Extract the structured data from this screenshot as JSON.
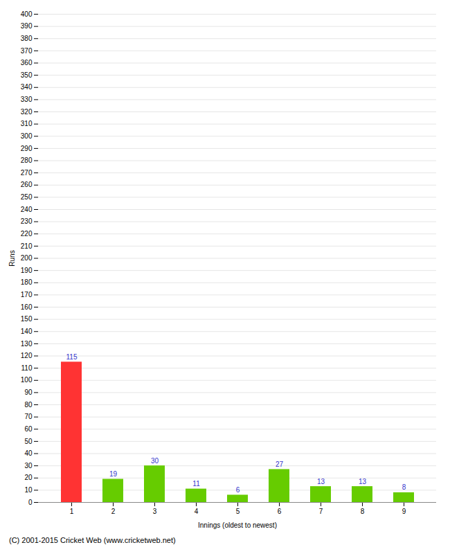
{
  "chart_data": {
    "type": "bar",
    "categories": [
      "1",
      "2",
      "3",
      "4",
      "5",
      "6",
      "7",
      "8",
      "9"
    ],
    "values": [
      115,
      19,
      30,
      11,
      6,
      27,
      13,
      13,
      8
    ],
    "colors": [
      "#ff3333",
      "#66cc00",
      "#66cc00",
      "#66cc00",
      "#66cc00",
      "#66cc00",
      "#66cc00",
      "#66cc00",
      "#66cc00"
    ],
    "xlabel": "Innings (oldest to newest)",
    "ylabel": "Runs",
    "ylim": [
      0,
      400
    ],
    "yticks": [
      0,
      10,
      20,
      30,
      40,
      50,
      60,
      70,
      80,
      90,
      100,
      110,
      120,
      130,
      140,
      150,
      160,
      170,
      180,
      190,
      200,
      210,
      220,
      230,
      240,
      250,
      260,
      270,
      280,
      290,
      300,
      310,
      320,
      330,
      340,
      350,
      360,
      370,
      380,
      390,
      400
    ],
    "grid": true,
    "data_labels": true,
    "caption": "(C) 2001-2015 Cricket Web (www.cricketweb.net)"
  }
}
